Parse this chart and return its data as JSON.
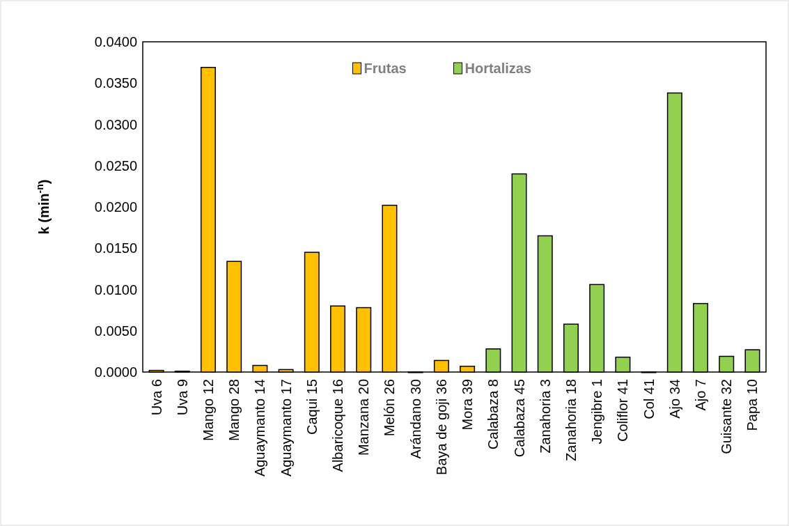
{
  "chart_data": {
    "type": "bar",
    "ylabel": "k (min$^{-n}$)",
    "categories": [
      "Uva 6",
      "Uva 9",
      "Mango 12",
      "Mango 28",
      "Aguaymanto 14",
      "Aguaymanto 17",
      "Caqui 15",
      "Albaricoque 16",
      "Manzana 20",
      "Melón 26",
      "Arándano 30",
      "Baya de goji 36",
      "Mora 39",
      "Calabaza 8",
      "Calabaza 45",
      "Zanahoria 3",
      "Zanahoria 18",
      "Jengibre 1",
      "Coliflor 41",
      "Col 41",
      "Ajo 34",
      "Ajo 7",
      "Guisante 32",
      "Papa 10"
    ],
    "series": [
      {
        "name": "Frutas",
        "color": "#ffc000",
        "values": [
          0.0002,
          0.0001,
          0.0369,
          0.0134,
          0.0008,
          0.0003,
          0.0145,
          0.008,
          0.0078,
          0.0202,
          0.0,
          0.0014,
          0.0007,
          null,
          null,
          null,
          null,
          null,
          null,
          null,
          null,
          null,
          null,
          null
        ]
      },
      {
        "name": "Hortalizas",
        "color": "#92d050",
        "values": [
          null,
          null,
          null,
          null,
          null,
          null,
          null,
          null,
          null,
          null,
          null,
          null,
          null,
          0.0028,
          0.024,
          0.0165,
          0.0058,
          0.0106,
          0.0018,
          0.0,
          0.0338,
          0.0083,
          0.0019,
          0.0027
        ]
      }
    ],
    "ylim": [
      0,
      0.04
    ],
    "yticks": [
      {
        "value": 0,
        "label": "0.0000"
      },
      {
        "value": 0.005,
        "label": "0.0050"
      },
      {
        "value": 0.01,
        "label": "0.0100"
      },
      {
        "value": 0.015,
        "label": "0.0150"
      },
      {
        "value": 0.02,
        "label": "0.0200"
      },
      {
        "value": 0.025,
        "label": "0.0250"
      },
      {
        "value": 0.03,
        "label": "0.0300"
      },
      {
        "value": 0.035,
        "label": "0.0350"
      },
      {
        "value": 0.04,
        "label": "0.0400"
      }
    ],
    "grid": false,
    "legend": "top"
  }
}
